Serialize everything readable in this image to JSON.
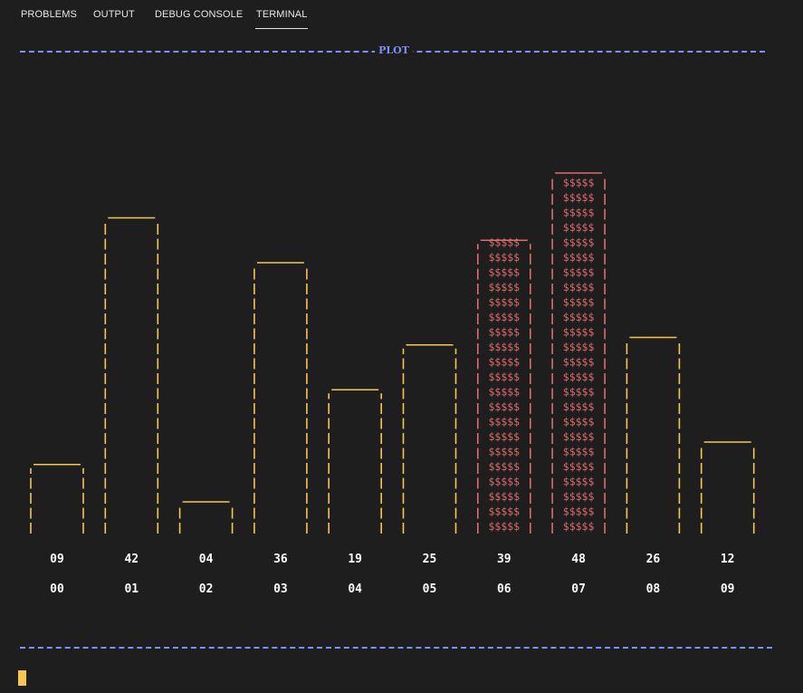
{
  "tabs": [
    {
      "label": "PROBLEMS",
      "active": false
    },
    {
      "label": "OUTPUT",
      "active": false
    },
    {
      "label": "DEBUG CONSOLE",
      "active": false
    },
    {
      "label": "TERMINAL",
      "active": true
    }
  ],
  "terminal": {
    "plot_title": "PLOT",
    "hollow_fill": "",
    "filled_fill": "$$$$$"
  },
  "colors": {
    "background": "#1e1e1e",
    "rule": "#7f8ff2",
    "bar_outline": "#f6c552",
    "bar_highlight": "#e06c6c",
    "label": "#ffffff"
  },
  "chart_data": {
    "type": "bar",
    "categories": [
      "00",
      "01",
      "02",
      "03",
      "04",
      "05",
      "06",
      "07",
      "08",
      "09"
    ],
    "values": [
      9,
      42,
      4,
      36,
      19,
      25,
      39,
      48,
      26,
      12
    ],
    "value_labels": [
      "09",
      "42",
      "04",
      "36",
      "19",
      "25",
      "39",
      "48",
      "26",
      "12"
    ],
    "highlighted": [
      false,
      false,
      false,
      false,
      false,
      false,
      true,
      true,
      false,
      false
    ],
    "title": "PLOT",
    "xlabel": "",
    "ylabel": "",
    "ylim": [
      0,
      48
    ],
    "grid": false,
    "legend": "none"
  }
}
